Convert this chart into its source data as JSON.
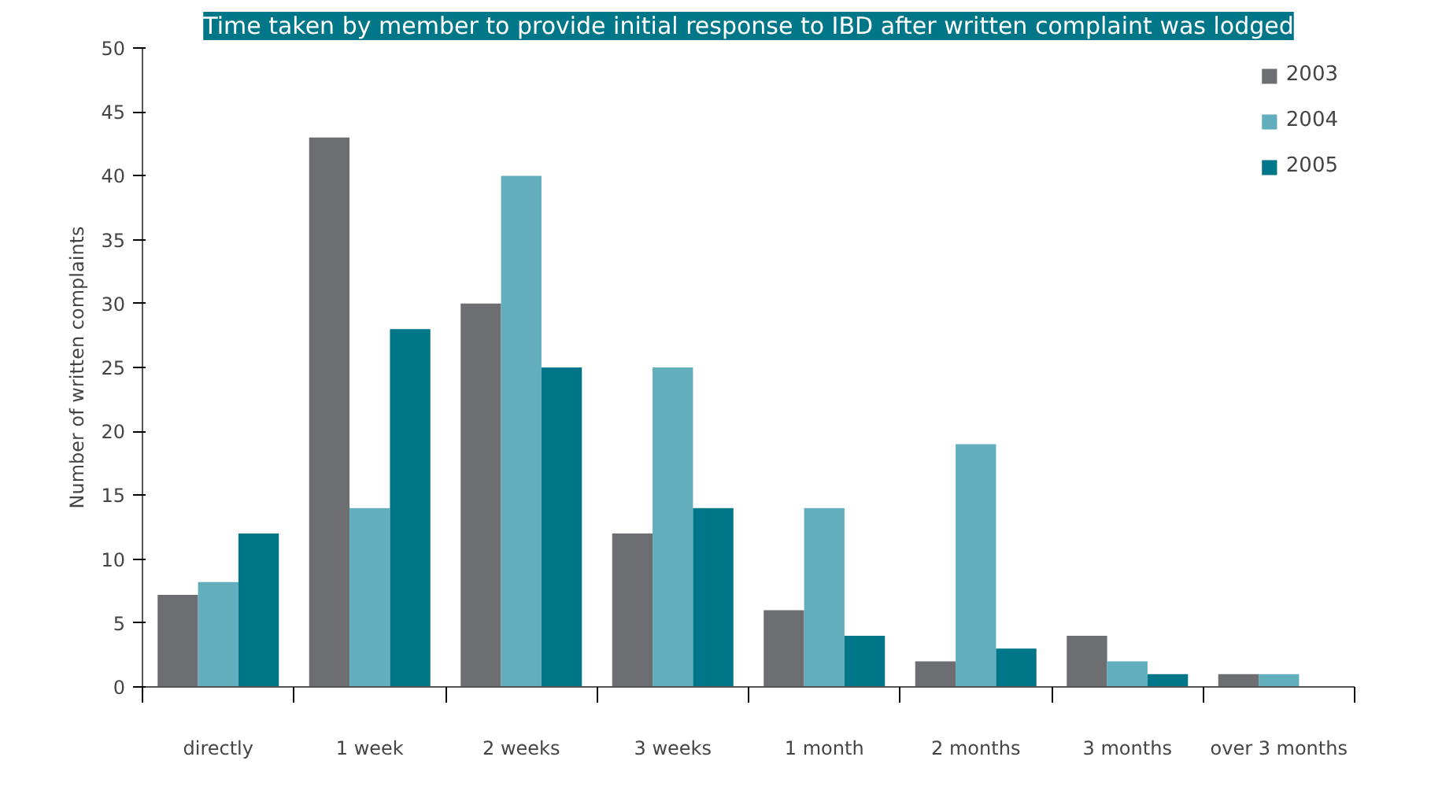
{
  "chart_data": {
    "type": "bar",
    "title": "Time taken by member to provide initial response to IBD after written complaint was lodged",
    "ylabel": "Number of written complaints",
    "categories": [
      "directly",
      "1 week",
      "2 weeks",
      "3 weeks",
      "1 month",
      "2 months",
      "3 months",
      "over 3 months"
    ],
    "series": [
      {
        "name": "2003",
        "color": "#6d6e71",
        "values": [
          7.2,
          43,
          30,
          12,
          6,
          2,
          4,
          1
        ]
      },
      {
        "name": "2004",
        "color": "#63aebc",
        "values": [
          8.2,
          14,
          40,
          25,
          14,
          19,
          2,
          1
        ]
      },
      {
        "name": "2005",
        "color": "#007788",
        "values": [
          12,
          28,
          25,
          14,
          4,
          3,
          1,
          0
        ]
      }
    ],
    "ylim": [
      0,
      50
    ],
    "yticks": [
      0,
      5,
      10,
      15,
      20,
      25,
      30,
      35,
      40,
      45,
      50
    ],
    "grid": false,
    "legend": "top right"
  }
}
